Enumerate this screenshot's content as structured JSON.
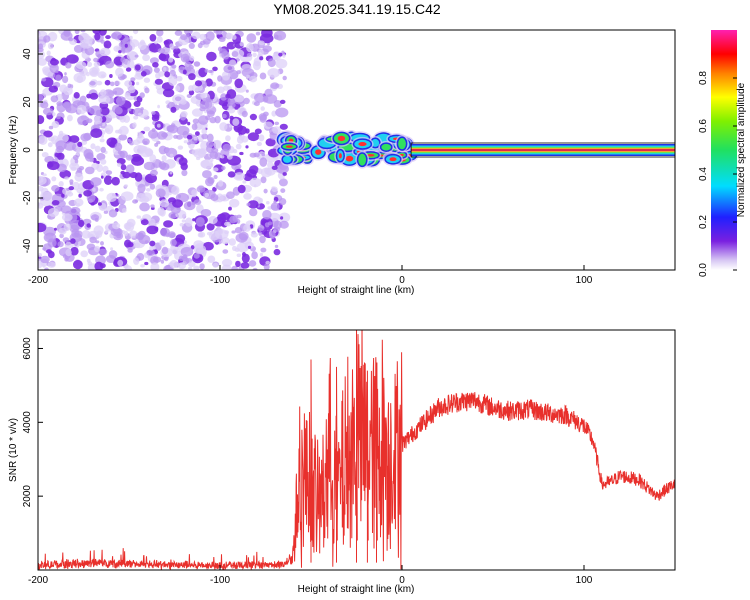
{
  "title": "YM08.2025.341.19.15.C42",
  "colors": {
    "snr_line": "#e8302c",
    "axis": "#000000",
    "tone_band": "#e0284a"
  },
  "chart_data": [
    {
      "type": "heatmap",
      "name": "spectrogram",
      "xlabel": "Height of straight line (km)",
      "ylabel": "Frequency (Hz)",
      "xlim": [
        -200,
        150
      ],
      "ylim": [
        -50,
        50
      ],
      "xticks": [
        -200,
        -100,
        0,
        100
      ],
      "yticks": [
        -40,
        -20,
        0,
        20,
        40
      ],
      "noise_region_x": [
        -200,
        -64
      ],
      "signal_cluster_x": [
        -64,
        5
      ],
      "tone_frequency": 0,
      "tone_start_x": 5,
      "colorbar": {
        "label": "Normalized spectral amplitude",
        "range": [
          0,
          1
        ],
        "ticks": [
          0.0,
          0.2,
          0.4,
          0.6,
          0.8
        ],
        "tick_labels": [
          "0.0",
          "0.2",
          "0.4",
          "0.6",
          "0.8"
        ]
      }
    },
    {
      "type": "line",
      "name": "snr",
      "xlabel": "Height of straight line (km)",
      "ylabel": "SNR (10 * v/v)",
      "xlim": [
        -200,
        150
      ],
      "ylim": [
        0,
        6500
      ],
      "xticks": [
        -200,
        -100,
        0,
        100
      ],
      "yticks": [
        2000,
        4000,
        6000
      ],
      "x": [
        -200,
        -170,
        -140,
        -110,
        -80,
        -65,
        -60,
        -58,
        -55,
        -50,
        -46,
        -40,
        -36,
        -30,
        -26,
        -22,
        -18,
        -14,
        -10,
        -5,
        0,
        10,
        20,
        30,
        40,
        50,
        60,
        70,
        80,
        90,
        100,
        105,
        110,
        115,
        120,
        130,
        140,
        150
      ],
      "values": [
        120,
        200,
        150,
        130,
        110,
        160,
        350,
        1600,
        2600,
        2400,
        1700,
        3000,
        2300,
        2900,
        3400,
        3700,
        3200,
        3500,
        3300,
        3100,
        3400,
        3900,
        4400,
        4550,
        4600,
        4400,
        4300,
        4350,
        4250,
        4200,
        3900,
        3500,
        2300,
        2400,
        2550,
        2450,
        2000,
        2350
      ],
      "spikes": [
        {
          "x": -50,
          "y": 5700
        },
        {
          "x": -36,
          "y": 5500
        },
        {
          "x": -25,
          "y": 6600
        },
        {
          "x": -19,
          "y": 5400
        },
        {
          "x": -14,
          "y": 5100
        }
      ]
    }
  ]
}
